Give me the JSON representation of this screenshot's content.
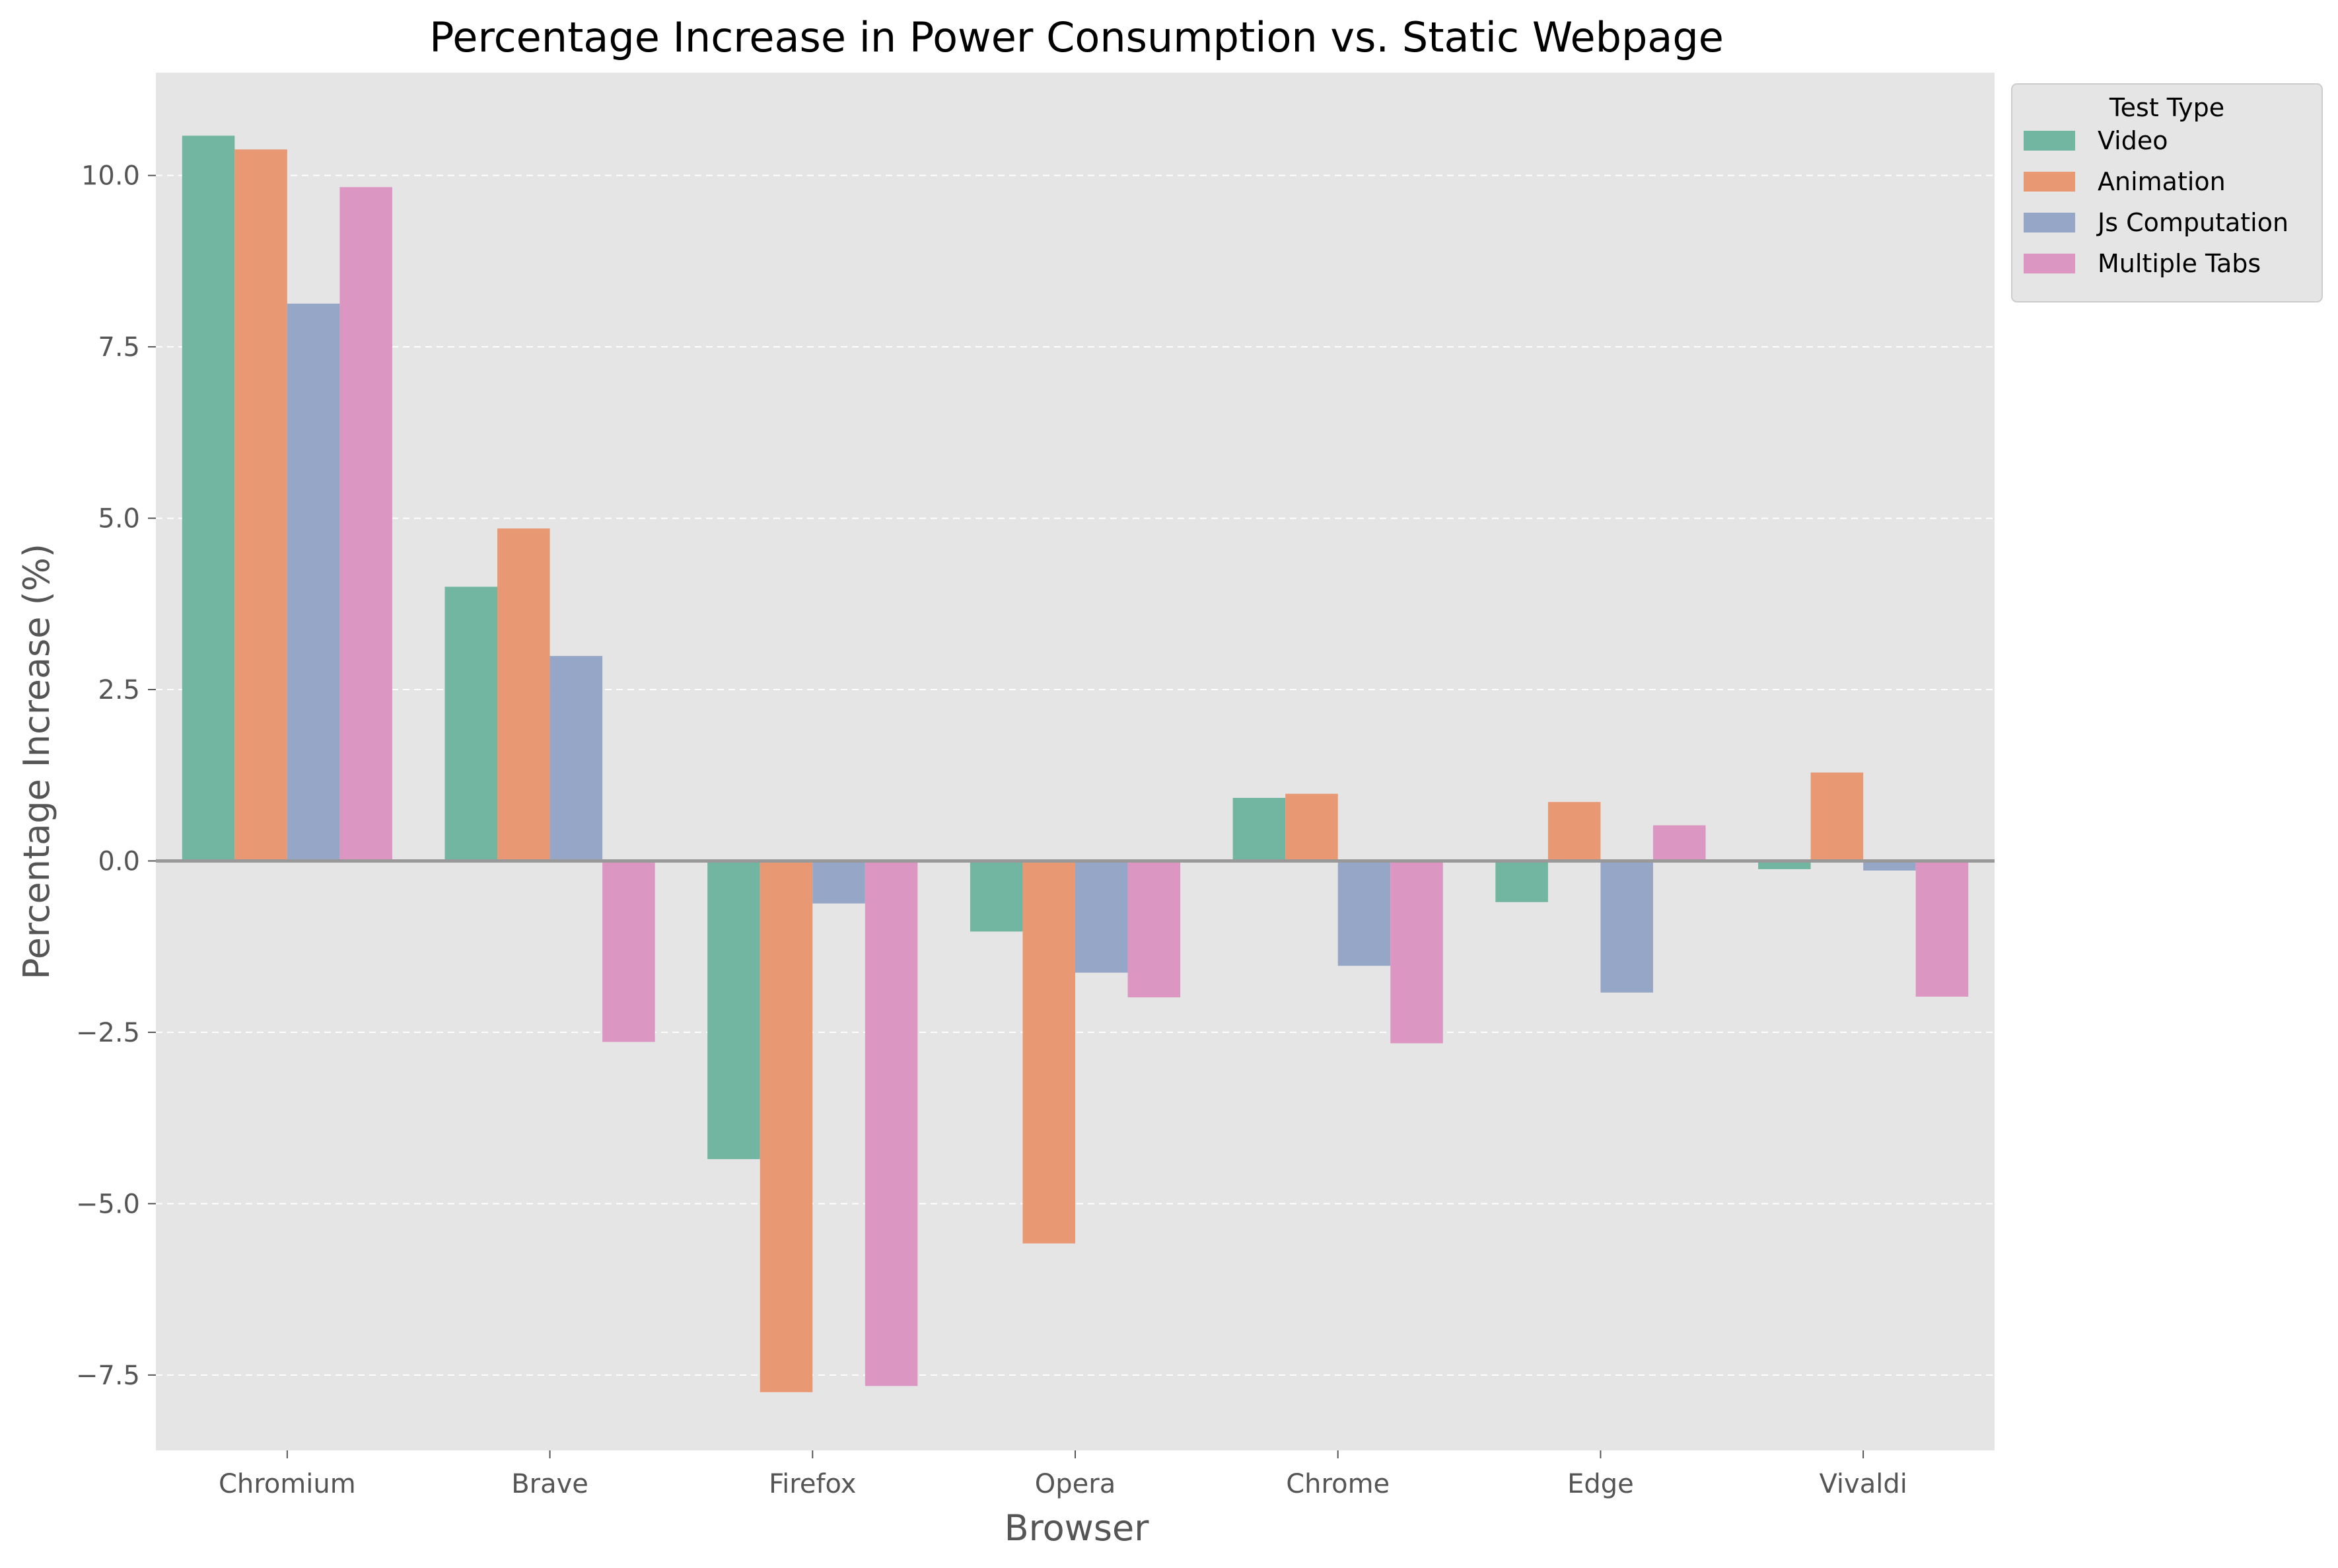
{
  "chart_data": {
    "type": "bar",
    "title": "Percentage Increase in Power Consumption vs. Static Webpage",
    "xlabel": "Browser",
    "ylabel": "Percentage Increase (%)",
    "categories": [
      "Chromium",
      "Brave",
      "Firefox",
      "Opera",
      "Chrome",
      "Edge",
      "Vivaldi"
    ],
    "series": [
      {
        "name": "Video",
        "color": "#72b5a0",
        "values": [
          10.58,
          4.0,
          -4.35,
          -1.03,
          0.92,
          -0.6,
          -0.12
        ]
      },
      {
        "name": "Animation",
        "color": "#e99874",
        "values": [
          10.38,
          4.85,
          -7.75,
          -5.58,
          0.98,
          0.86,
          1.29
        ]
      },
      {
        "name": "Js Computation",
        "color": "#96a6c6",
        "values": [
          8.13,
          2.99,
          -0.62,
          -1.63,
          -1.53,
          -1.92,
          -0.14
        ]
      },
      {
        "name": "Multiple Tabs",
        "color": "#dc96c2",
        "values": [
          9.83,
          -2.64,
          -7.66,
          -1.99,
          -2.66,
          0.52,
          -1.98
        ]
      }
    ],
    "ylim": [
      -8.6,
      11.5
    ],
    "yticks": [
      -7.5,
      -5.0,
      -2.5,
      0.0,
      2.5,
      5.0,
      7.5,
      10.0
    ],
    "ytick_labels": [
      "−7.5",
      "−5.0",
      "−2.5",
      "0.0",
      "2.5",
      "5.0",
      "7.5",
      "10.0"
    ],
    "grid": "horizontal dashed",
    "legend": {
      "title": "Test Type",
      "placement": "outside top-right"
    },
    "colors": {
      "plot_background": "#e5e5e5",
      "grid": "#ffffff",
      "zero_line": "#999999"
    }
  }
}
